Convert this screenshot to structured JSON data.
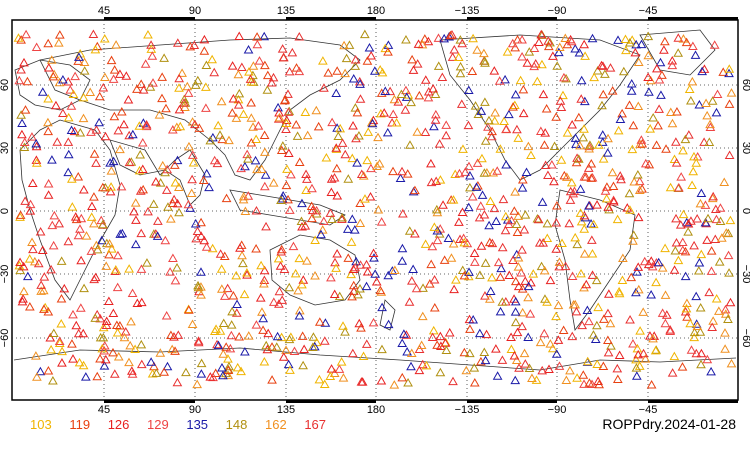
{
  "map": {
    "title": "ROPPdry.2024-01-28",
    "lon_ticks": [
      "45",
      "90",
      "135",
      "180",
      "−135",
      "−90",
      "−45"
    ],
    "lat_ticks_left": [
      "60",
      "30",
      "0",
      "−30",
      "−60"
    ],
    "lat_ticks_right": [
      "60",
      "30",
      "0",
      "−30",
      "−60"
    ],
    "marker": "triangle-outline",
    "grid": "dotted",
    "legend": [
      {
        "label": "103",
        "color": "#f0b400"
      },
      {
        "label": "119",
        "color": "#e84010"
      },
      {
        "label": "126",
        "color": "#e82020"
      },
      {
        "label": "129",
        "color": "#ee4444"
      },
      {
        "label": "135",
        "color": "#1a1aa8"
      },
      {
        "label": "148",
        "color": "#b09010"
      },
      {
        "label": "162",
        "color": "#f09020"
      },
      {
        "label": "167",
        "color": "#e83030"
      }
    ]
  }
}
